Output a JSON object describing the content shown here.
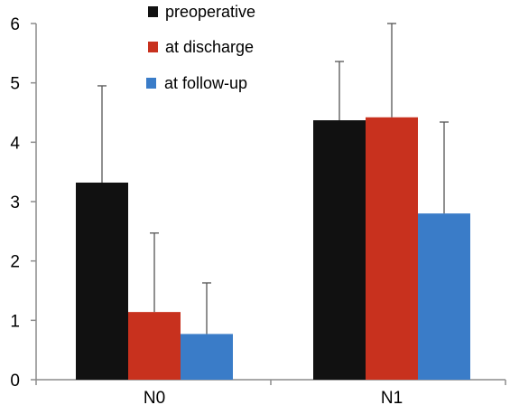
{
  "chart_data": {
    "type": "bar",
    "categories": [
      "N0",
      "N1"
    ],
    "series": [
      {
        "name": "preoperative",
        "values": [
          3.32,
          4.37
        ],
        "errors": [
          1.63,
          0.99
        ],
        "color": "#111111"
      },
      {
        "name": "at discharge",
        "values": [
          1.14,
          4.42
        ],
        "errors": [
          1.33,
          1.62
        ],
        "color": "#c8311e"
      },
      {
        "name": "at follow-up",
        "values": [
          0.77,
          2.8
        ],
        "errors": [
          0.86,
          1.54
        ],
        "color": "#3a7cc8"
      }
    ],
    "y_ticks": [
      "0",
      "1",
      "2",
      "3",
      "4",
      "5",
      "6"
    ],
    "ylim": [
      0,
      6
    ],
    "grid": false,
    "legend_position": "top-center",
    "title": "",
    "xlabel": "",
    "ylabel": ""
  }
}
